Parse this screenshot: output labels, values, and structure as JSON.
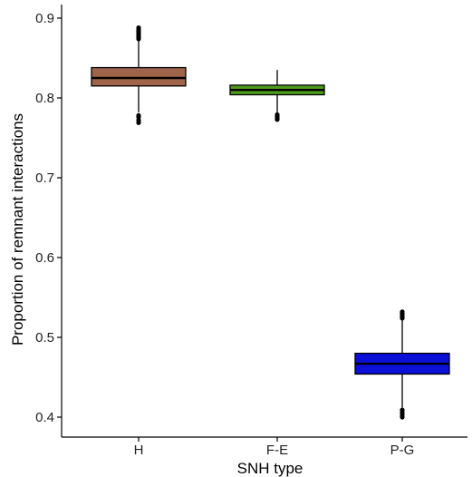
{
  "chart_data": {
    "type": "boxplot",
    "xlabel": "SNH type",
    "ylabel": "Proportion of remnant interactions",
    "ylim": [
      0.38,
      0.91
    ],
    "yticks": [
      "0.4",
      "0.5",
      "0.6",
      "0.7",
      "0.8",
      "0.9"
    ],
    "categories": [
      "H",
      "F-E",
      "P-G"
    ],
    "grid": false,
    "legend": "none",
    "series": [
      {
        "category": "H",
        "color": "#a0644a",
        "whisker_low": 0.782,
        "q1": 0.815,
        "median": 0.825,
        "q3": 0.838,
        "whisker_high": 0.872,
        "outliers": [
          0.769,
          0.772,
          0.776,
          0.778,
          0.874,
          0.876,
          0.878,
          0.88,
          0.882,
          0.884,
          0.886,
          0.888
        ]
      },
      {
        "category": "F-E",
        "color": "#4e9a1c",
        "whisker_low": 0.78,
        "q1": 0.804,
        "median": 0.81,
        "q3": 0.816,
        "whisker_high": 0.835,
        "outliers": [
          0.773,
          0.775,
          0.777,
          0.779
        ]
      },
      {
        "category": "P-G",
        "color": "#0a10d8",
        "whisker_low": 0.412,
        "q1": 0.454,
        "median": 0.467,
        "q3": 0.48,
        "whisker_high": 0.522,
        "outliers": [
          0.4,
          0.403,
          0.406,
          0.409,
          0.524,
          0.526,
          0.528,
          0.53,
          0.532
        ]
      }
    ]
  }
}
